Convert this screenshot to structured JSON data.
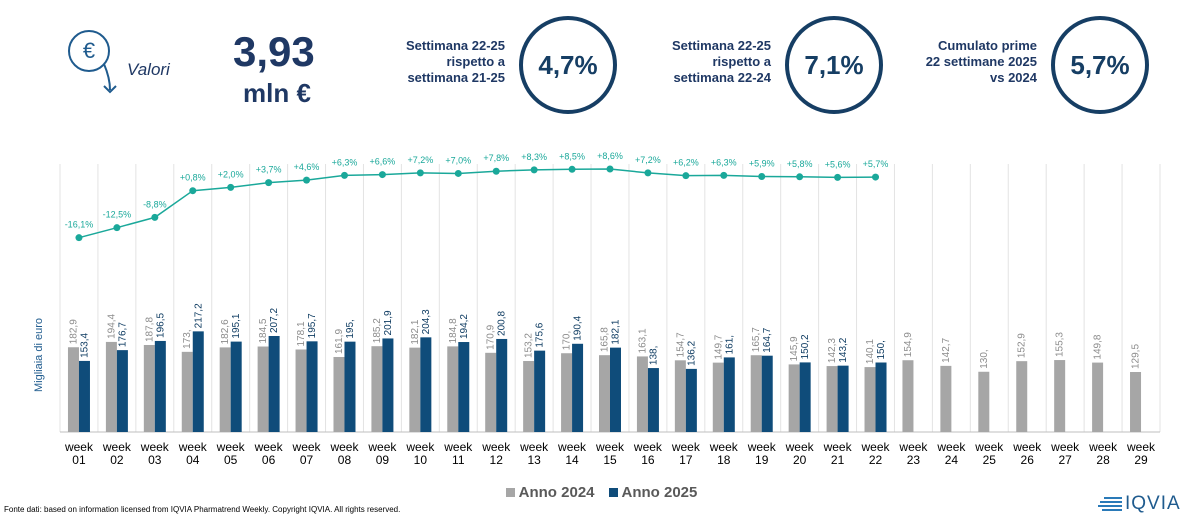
{
  "header": {
    "icon": "€",
    "label": "Valori",
    "value": "3,93",
    "unit": "mln €"
  },
  "kpis": [
    {
      "label": "Settimana 22-25 rispetto a settimana 21-25",
      "value": "4,7%"
    },
    {
      "label": "Settimana 22-25 rispetto a settimana 22-24",
      "value": "7,1%"
    },
    {
      "label": "Cumulato prime 22 settimane 2025 vs 2024",
      "value": "5,7%"
    }
  ],
  "chart_data": {
    "type": "bar",
    "y_label": "Migliaia di euro",
    "ylim": [
      0,
      600
    ],
    "y2lim": [
      -86,
      14
    ],
    "categories": [
      "week 01",
      "week 02",
      "week 03",
      "week 04",
      "week 05",
      "week 06",
      "week 07",
      "week 08",
      "week 09",
      "week 10",
      "week 11",
      "week 12",
      "week 13",
      "week 14",
      "week 15",
      "week 16",
      "week 17",
      "week 18",
      "week 19",
      "week 20",
      "week 21",
      "week 22",
      "week 23",
      "week 24",
      "week 25",
      "week 26",
      "week 27",
      "week 28",
      "week 29"
    ],
    "series": [
      {
        "name": "Anno 2024",
        "color": "#a6a6a6",
        "values": [
          182.9,
          194.4,
          187.8,
          173,
          182.6,
          184.5,
          178.1,
          161.9,
          185.2,
          182.1,
          184.8,
          170.9,
          153.2,
          170,
          165.8,
          163.1,
          154.7,
          149.7,
          165.7,
          145.9,
          142.3,
          140.1,
          154.9,
          142.7,
          130,
          152.9,
          155.3,
          149.8,
          129.5
        ],
        "value_labels": [
          "182,9",
          "194,4",
          "187,8",
          "173,",
          "182,6",
          "184,5",
          "178,1",
          "161,9",
          "185,2",
          "182,1",
          "184,8",
          "170,9",
          "153,2",
          "170,",
          "165,8",
          "163,1",
          "154,7",
          "149,7",
          "165,7",
          "145,9",
          "142,3",
          "140,1",
          "154,9",
          "142,7",
          "130,",
          "152,9",
          "155,3",
          "149,8",
          "129,5"
        ]
      },
      {
        "name": "Anno 2025",
        "color": "#0f4c7a",
        "values": [
          153.4,
          176.7,
          196.5,
          217.2,
          195.1,
          207.2,
          195.7,
          195,
          201.9,
          204.3,
          194.2,
          200.8,
          175.6,
          190.4,
          182.1,
          138,
          136.2,
          161,
          164.7,
          150.2,
          143.2,
          150,
          null,
          null,
          null,
          null,
          null,
          null,
          null
        ],
        "value_labels": [
          "153,4",
          "176,7",
          "196,5",
          "217,2",
          "195,1",
          "207,2",
          "195,7",
          "195,",
          "201,9",
          "204,3",
          "194,2",
          "200,8",
          "175,6",
          "190,4",
          "182,1",
          "138,",
          "136,2",
          "161,",
          "164,7",
          "150,2",
          "143,2",
          "150,",
          null,
          null,
          null,
          null,
          null,
          null,
          null
        ]
      },
      {
        "type": "line",
        "axis": "y2",
        "color": "#1aa89a",
        "values": [
          -16.1,
          -12.5,
          -8.8,
          0.8,
          2.0,
          3.7,
          4.6,
          6.3,
          6.6,
          7.2,
          7.0,
          7.8,
          8.3,
          8.5,
          8.6,
          7.2,
          6.2,
          6.3,
          5.9,
          5.8,
          5.6,
          5.7,
          null,
          null,
          null,
          null,
          null,
          null,
          null
        ],
        "value_labels": [
          "-16,1%",
          "-12,5%",
          "-8,8%",
          "+0,8%",
          "+2,0%",
          "+3,7%",
          "+4,6%",
          "+6,3%",
          "+6,6%",
          "+7,2%",
          "+7,0%",
          "+7,8%",
          "+8,3%",
          "+8,5%",
          "+8,6%",
          "+7,2%",
          "+6,2%",
          "+6,3%",
          "+5,9%",
          "+5,8%",
          "+5,6%",
          "+5,7%",
          null,
          null,
          null,
          null,
          null,
          null,
          null
        ]
      }
    ]
  },
  "footer": {
    "source": "Fonte dati: based on information licensed from IQVIA Pharmatrend Weekly. Copyright IQVIA. All rights reserved.",
    "logo": "IQVIA"
  }
}
